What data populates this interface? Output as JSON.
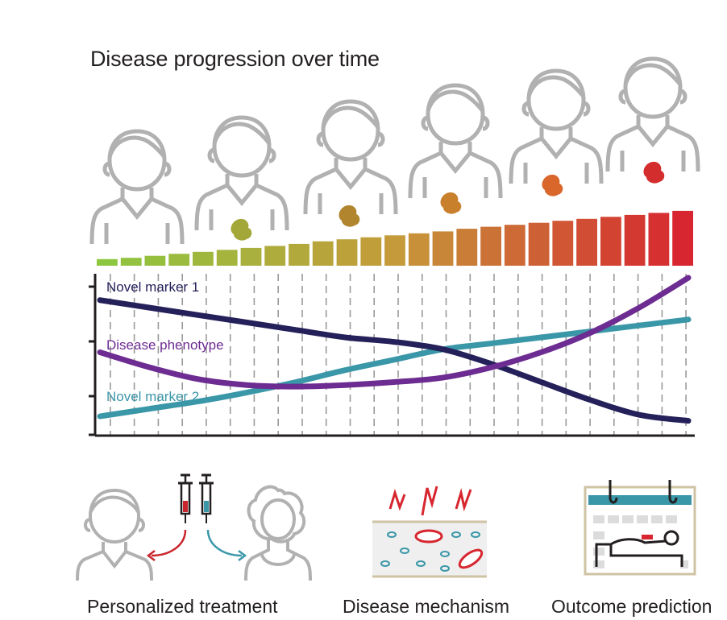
{
  "title": "Disease progression over time",
  "series_labels": {
    "marker1": "Novel marker 1",
    "phenotype": "Disease phenotype",
    "marker2": "Novel marker 2"
  },
  "captions": {
    "treatment": "Personalized treatment",
    "mechanism": "Disease mechanism",
    "outcome": "Outcome prediction"
  },
  "colors": {
    "person_outline": "#b1b1b1",
    "marker1": "#24205a",
    "phenotype": "#6d2c91",
    "marker2": "#3a97a8",
    "bar_start": "#8dc63f",
    "bar_mid": "#c59a3a",
    "bar_end": "#d7262f",
    "axis": "#231f20"
  },
  "icons": {
    "treatment": "person-with-syringes-icon",
    "mechanism": "cells-in-vessel-icon",
    "outcome": "calendar-patient-bed-icon"
  },
  "chart_data": {
    "type": "line",
    "bar_count": 25,
    "bar_levels": [
      0.1,
      0.12,
      0.15,
      0.18,
      0.21,
      0.24,
      0.27,
      0.3,
      0.33,
      0.37,
      0.4,
      0.43,
      0.46,
      0.49,
      0.52,
      0.56,
      0.59,
      0.62,
      0.65,
      0.68,
      0.71,
      0.74,
      0.77,
      0.8,
      0.83
    ],
    "series": [
      {
        "name": "Novel marker 1",
        "values": [
          0.85,
          0.8,
          0.75,
          0.7,
          0.65,
          0.6,
          0.57,
          0.52,
          0.42,
          0.3,
          0.18,
          0.08,
          0.04
        ]
      },
      {
        "name": "Disease phenotype",
        "values": [
          0.5,
          0.4,
          0.32,
          0.28,
          0.27,
          0.28,
          0.3,
          0.33,
          0.4,
          0.5,
          0.63,
          0.8,
          1.0
        ]
      },
      {
        "name": "Novel marker 2",
        "values": [
          0.07,
          0.12,
          0.17,
          0.23,
          0.3,
          0.38,
          0.45,
          0.52,
          0.56,
          0.6,
          0.64,
          0.68,
          0.72
        ]
      }
    ],
    "axis_ticks": 4,
    "grid": true
  }
}
